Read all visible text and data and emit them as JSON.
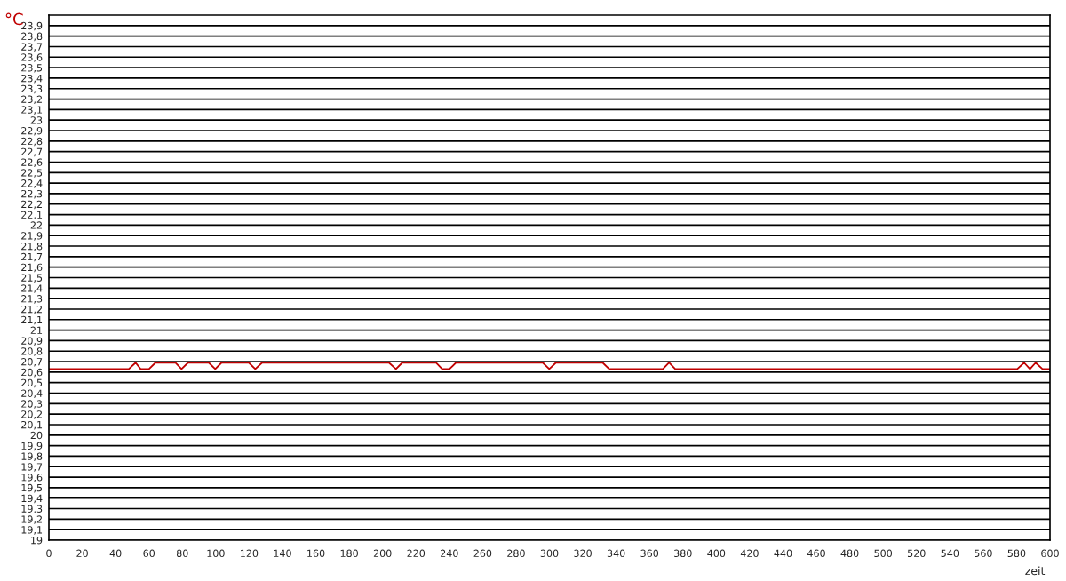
{
  "chart_data": {
    "type": "line",
    "xlabel": "zeit",
    "ylabel": "°C",
    "x": [
      0,
      47.9,
      52.0,
      55.0,
      60.0,
      63.9,
      75.8,
      79.5,
      83.4,
      95.8,
      99.7,
      103.5,
      119.8,
      123.7,
      127.8,
      203.8,
      208.0,
      211.8,
      232.0,
      235.7,
      240.1,
      244.0,
      296.0,
      299.9,
      303.9,
      331.9,
      335.8,
      368.0,
      371.7,
      375.4,
      580.4,
      584.5,
      588.0,
      591.4,
      595.5,
      600
    ],
    "series": [
      {
        "color": "#c00000",
        "values": [
          20.63,
          20.63,
          20.69,
          20.63,
          20.63,
          20.69,
          20.69,
          20.63,
          20.69,
          20.69,
          20.63,
          20.69,
          20.69,
          20.63,
          20.69,
          20.69,
          20.63,
          20.69,
          20.69,
          20.63,
          20.63,
          20.69,
          20.69,
          20.63,
          20.69,
          20.69,
          20.63,
          20.63,
          20.69,
          20.63,
          20.63,
          20.69,
          20.63,
          20.69,
          20.63,
          20.63
        ]
      }
    ],
    "xlim": [
      0,
      600
    ],
    "xticks": [
      0,
      20,
      40,
      60,
      80,
      100,
      120,
      140,
      160,
      180,
      200,
      220,
      240,
      260,
      280,
      300,
      320,
      340,
      360,
      380,
      400,
      420,
      440,
      460,
      480,
      500,
      520,
      540,
      560,
      580,
      600
    ],
    "ylim": [
      19,
      24
    ],
    "yticks": [
      19,
      {
        "value": 19.1,
        "label": "19,1"
      },
      {
        "value": 19.2,
        "label": "19,2"
      },
      {
        "value": 19.3,
        "label": "19,3"
      },
      {
        "value": 19.4,
        "label": "19,4"
      },
      {
        "value": 19.5,
        "label": "19,5"
      },
      {
        "value": 19.6,
        "label": "19,6"
      },
      {
        "value": 19.7,
        "label": "19,7"
      },
      {
        "value": 19.8,
        "label": "19,8"
      },
      {
        "value": 19.9,
        "label": "19,9"
      },
      20,
      {
        "value": 20.1,
        "label": "20,1"
      },
      {
        "value": 20.2,
        "label": "20,2"
      },
      {
        "value": 20.3,
        "label": "20,3"
      },
      {
        "value": 20.4,
        "label": "20,4"
      },
      {
        "value": 20.5,
        "label": "20,5"
      },
      {
        "value": 20.6,
        "label": "20,6"
      },
      {
        "value": 20.7,
        "label": "20,7"
      },
      {
        "value": 20.8,
        "label": "20,8"
      },
      {
        "value": 20.9,
        "label": "20,9"
      },
      21,
      {
        "value": 21.1,
        "label": "21,1"
      },
      {
        "value": 21.2,
        "label": "21,2"
      },
      {
        "value": 21.3,
        "label": "21,3"
      },
      {
        "value": 21.4,
        "label": "21,4"
      },
      {
        "value": 21.5,
        "label": "21,5"
      },
      {
        "value": 21.6,
        "label": "21,6"
      },
      {
        "value": 21.7,
        "label": "21,7"
      },
      {
        "value": 21.8,
        "label": "21,8"
      },
      {
        "value": 21.9,
        "label": "21,9"
      },
      22,
      {
        "value": 22.1,
        "label": "22,1"
      },
      {
        "value": 22.2,
        "label": "22,2"
      },
      {
        "value": 22.3,
        "label": "22,3"
      },
      {
        "value": 22.4,
        "label": "22,4"
      },
      {
        "value": 22.5,
        "label": "22,5"
      },
      {
        "value": 22.6,
        "label": "22,6"
      },
      {
        "value": 22.7,
        "label": "22,7"
      },
      {
        "value": 22.8,
        "label": "22,8"
      },
      {
        "value": 22.9,
        "label": "22,9"
      },
      23,
      {
        "value": 23.1,
        "label": "23,1"
      },
      {
        "value": 23.2,
        "label": "23,2"
      },
      {
        "value": 23.3,
        "label": "23,3"
      },
      {
        "value": 23.4,
        "label": "23,4"
      },
      {
        "value": 23.5,
        "label": "23,5"
      },
      {
        "value": 23.6,
        "label": "23,6"
      },
      {
        "value": 23.7,
        "label": "23,7"
      },
      {
        "value": 23.8,
        "label": "23,8"
      },
      {
        "value": 23.9,
        "label": "23,9"
      }
    ],
    "grid": "y",
    "legend": false
  }
}
